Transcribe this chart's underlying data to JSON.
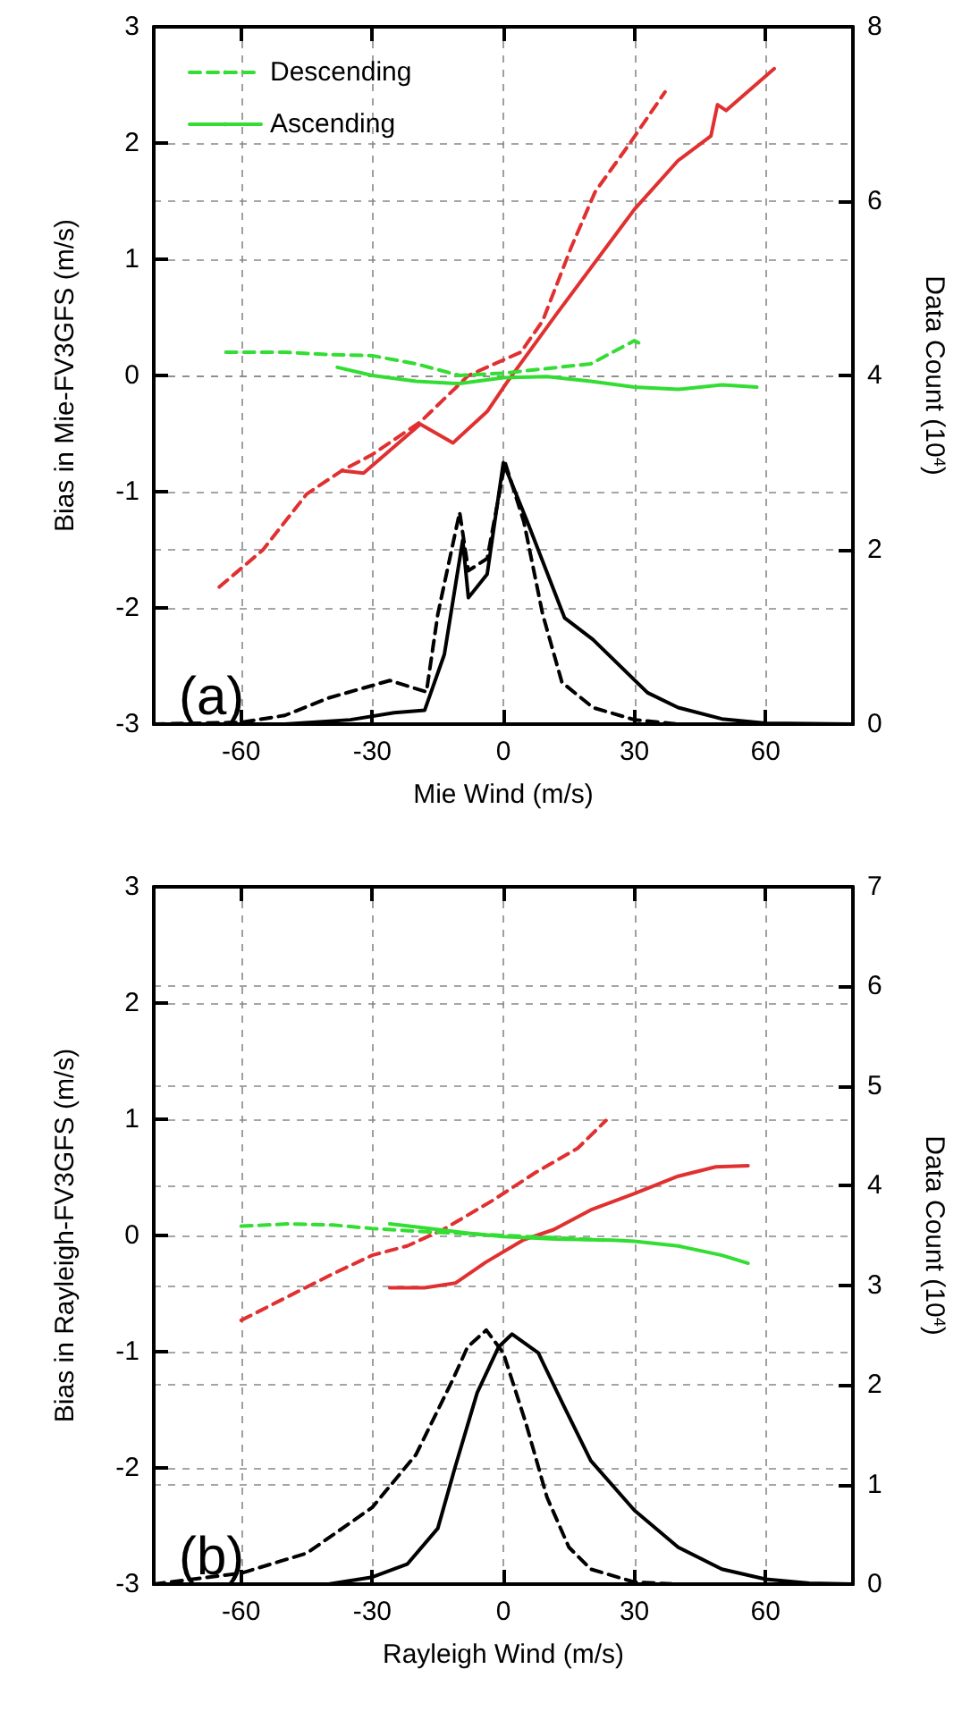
{
  "chart_data": [
    {
      "type": "line",
      "xlabel": "Mie Wind (m/s)",
      "ylabel": "Bias in Mie-FV3GFS (m/s)",
      "y2label": "Data Count (10$^{4}$)",
      "annotations": [
        "(a)"
      ],
      "xlim": [
        -80,
        80
      ],
      "xticks": [
        -60,
        -30,
        0,
        30,
        60
      ],
      "ylim": [
        -3,
        3
      ],
      "yticks": [
        -3,
        -2,
        -1,
        0,
        1,
        2,
        3
      ],
      "y2lim": [
        0,
        8
      ],
      "y2ticks": [
        0,
        2,
        4,
        6,
        8
      ],
      "grid": true,
      "legend": "top left",
      "series": [
        {
          "color": "#e03030",
          "line_style": "dashed",
          "x": [
            -65,
            -55,
            -45,
            -37,
            -30,
            -19,
            -8,
            4,
            9,
            15.5,
            21,
            29,
            37
          ],
          "values": [
            -1.82,
            -1.5,
            -1.02,
            -0.82,
            -0.68,
            -0.4,
            0,
            0.2,
            0.47,
            1.1,
            1.58,
            2.0,
            2.44
          ]
        },
        {
          "color": "#e03030",
          "line_style": "solid",
          "x": [
            -37,
            -32,
            -19,
            -11.5,
            -3.7,
            0.8,
            12,
            30,
            40,
            47.5,
            49,
            51,
            62
          ],
          "values": [
            -0.82,
            -0.84,
            -0.42,
            -0.58,
            -0.31,
            -0.06,
            0.52,
            1.43,
            1.85,
            2.06,
            2.33,
            2.28,
            2.64
          ]
        },
        {
          "name": "Descending",
          "color": "#33dd33",
          "line_style": "dashed",
          "x": [
            -63.5,
            -50,
            -40,
            -30,
            -20,
            -10,
            0,
            10,
            20,
            25,
            30,
            31.5
          ],
          "values": [
            0.2,
            0.2,
            0.18,
            0.17,
            0.1,
            0.0,
            0.02,
            0.06,
            0.1,
            0.2,
            0.3,
            0.27
          ]
        },
        {
          "name": "Ascending",
          "color": "#33dd33",
          "line_style": "solid",
          "x": [
            -38,
            -30,
            -20,
            -10,
            0,
            10,
            20,
            30,
            40,
            50,
            58
          ],
          "values": [
            0.07,
            0.0,
            -0.05,
            -0.07,
            -0.02,
            -0.01,
            -0.05,
            -0.1,
            -0.12,
            -0.08,
            -0.1
          ]
        },
        {
          "color": "#000000",
          "line_style": "dashed",
          "axis": "y2",
          "x": [
            -80,
            -60,
            -50,
            -40,
            -26,
            -17.6,
            -15,
            -10,
            -8,
            -3.7,
            0.4,
            4.7,
            9,
            13.4,
            20.5,
            30,
            40,
            80
          ],
          "values": [
            0,
            0.02,
            0.1,
            0.3,
            0.5,
            0.37,
            1.26,
            2.43,
            1.76,
            1.9,
            3.0,
            2.32,
            1.26,
            0.48,
            0.19,
            0.05,
            0,
            0
          ]
        },
        {
          "color": "#000000",
          "line_style": "solid",
          "axis": "y2",
          "x": [
            -80,
            -50,
            -35,
            -25,
            -18,
            -13.5,
            -9.3,
            -8,
            -3.7,
            0,
            5.5,
            14,
            20.5,
            33,
            40,
            50,
            60,
            80
          ],
          "values": [
            0,
            0,
            0.05,
            0.13,
            0.16,
            0.8,
            2.11,
            1.45,
            1.72,
            3.0,
            2.32,
            1.22,
            0.97,
            0.36,
            0.19,
            0.06,
            0.01,
            0
          ]
        }
      ]
    },
    {
      "type": "line",
      "xlabel": "Rayleigh Wind (m/s)",
      "ylabel": "Bias in Rayleigh-FV3GFS (m/s)",
      "y2label": "Data Count (10$^{4}$)",
      "annotations": [
        "(b)"
      ],
      "xlim": [
        -80,
        80
      ],
      "xticks": [
        -60,
        -30,
        0,
        30,
        60
      ],
      "ylim": [
        -3,
        3
      ],
      "yticks": [
        -3,
        -2,
        -1,
        0,
        1,
        2,
        3
      ],
      "y2lim": [
        0,
        7
      ],
      "y2ticks": [
        0,
        1,
        2,
        3,
        4,
        5,
        6,
        7
      ],
      "grid": true,
      "series": [
        {
          "color": "#e03030",
          "line_style": "dashed",
          "x": [
            -60,
            -49,
            -39,
            -30,
            -22,
            -13.8,
            -2.5,
            7.3,
            17,
            23.5
          ],
          "values": [
            -0.73,
            -0.52,
            -0.33,
            -0.17,
            -0.09,
            0.05,
            0.3,
            0.54,
            0.75,
            0.99
          ]
        },
        {
          "color": "#e03030",
          "line_style": "solid",
          "x": [
            -26,
            -18,
            -11,
            -4,
            4.5,
            11.5,
            20,
            30,
            40,
            48.6,
            56
          ],
          "values": [
            -0.45,
            -0.45,
            -0.41,
            -0.23,
            -0.04,
            0.05,
            0.22,
            0.36,
            0.51,
            0.59,
            0.6
          ]
        },
        {
          "color": "#33dd33",
          "line_style": "dashed",
          "x": [
            -60,
            -49,
            -39,
            -30,
            -17,
            0,
            12,
            23
          ],
          "values": [
            0.08,
            0.1,
            0.09,
            0.06,
            0.03,
            0,
            -0.02,
            -0.04
          ]
        },
        {
          "color": "#33dd33",
          "line_style": "solid",
          "x": [
            -26,
            -19,
            -8,
            0,
            12,
            25,
            30,
            40,
            50,
            56
          ],
          "values": [
            0.1,
            0.07,
            0.02,
            -0.01,
            -0.03,
            -0.04,
            -0.05,
            -0.09,
            -0.17,
            -0.24
          ]
        },
        {
          "color": "#000000",
          "line_style": "dashed",
          "axis": "y2",
          "x": [
            -80,
            -60,
            -45,
            -30,
            -20,
            -11.7,
            -8.2,
            -3.9,
            0,
            5.2,
            10,
            15,
            20,
            30,
            40,
            80
          ],
          "values": [
            0,
            0.11,
            0.31,
            0.77,
            1.3,
            2.04,
            2.38,
            2.55,
            2.32,
            1.61,
            0.87,
            0.37,
            0.15,
            0.02,
            0,
            0
          ]
        },
        {
          "color": "#000000",
          "line_style": "solid",
          "axis": "y2",
          "x": [
            -80,
            -40,
            -30,
            -22,
            -15,
            -11,
            -6,
            -1.1,
            2,
            8,
            13.7,
            20,
            30,
            40,
            50,
            60,
            70,
            80
          ],
          "values": [
            0,
            0,
            0.07,
            0.2,
            0.56,
            1.18,
            1.92,
            2.38,
            2.51,
            2.32,
            1.8,
            1.24,
            0.74,
            0.37,
            0.15,
            0.05,
            0.01,
            0
          ]
        }
      ]
    }
  ]
}
